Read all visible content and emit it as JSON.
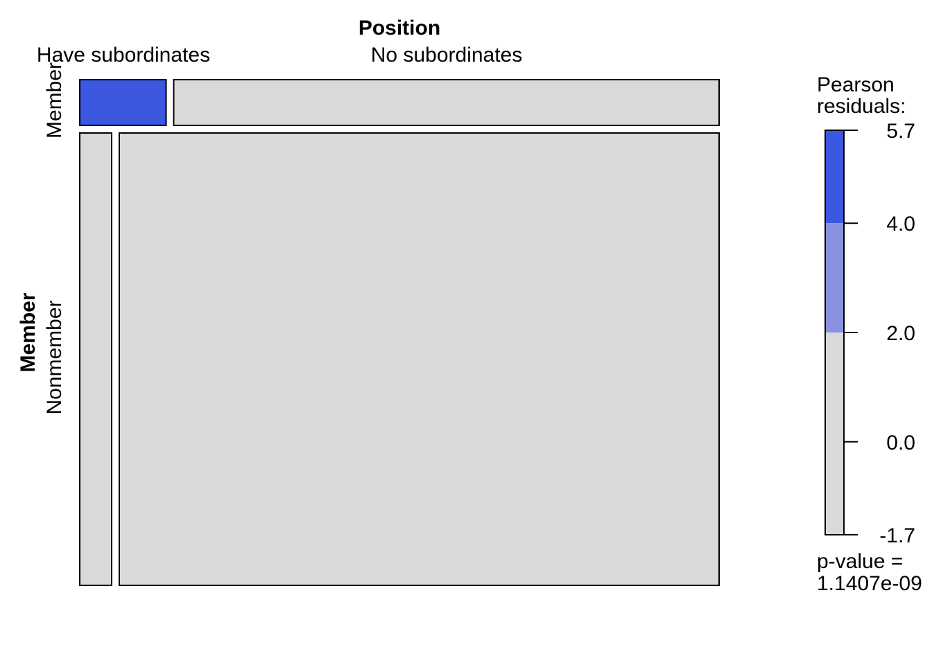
{
  "chart_data": {
    "type": "mosaic",
    "x_variable": "Position",
    "y_variable": "Member",
    "x_levels": [
      "Have subordinates",
      "No subordinates"
    ],
    "y_levels": [
      "Member",
      "Nonmember"
    ],
    "cells": [
      {
        "position": "Have subordinates",
        "member": "Member",
        "col_share": 0.1367,
        "row_share": 0.0918,
        "fill": "#3c57e0"
      },
      {
        "position": "No subordinates",
        "member": "Member",
        "col_share": 0.8633,
        "row_share": 0.0918,
        "fill": "#d9d9d9"
      },
      {
        "position": "Have subordinates",
        "member": "Nonmember",
        "col_share": 0.0505,
        "row_share": 0.9082,
        "fill": "#d9d9d9"
      },
      {
        "position": "No subordinates",
        "member": "Nonmember",
        "col_share": 0.9495,
        "row_share": 0.9082,
        "fill": "#d9d9d9"
      }
    ],
    "legend": {
      "title_line1": "Pearson",
      "title_line2": "residuals:",
      "ticks": [
        "5.7",
        "4.0",
        "2.0",
        "0.0",
        "-1.7"
      ],
      "tick_values": [
        5.7,
        4.0,
        2.0,
        0.0,
        -1.7
      ],
      "range": [
        -1.7,
        5.7
      ],
      "bands": [
        {
          "from": 4.0,
          "to": 5.7,
          "color": "#3c57e0"
        },
        {
          "from": 2.0,
          "to": 4.0,
          "color": "#8a91df"
        },
        {
          "from": -1.7,
          "to": 2.0,
          "color": "#d9d9d9"
        }
      ],
      "pvalue_line1": "p-value =",
      "pvalue_line2": "1.1407e-09"
    }
  }
}
